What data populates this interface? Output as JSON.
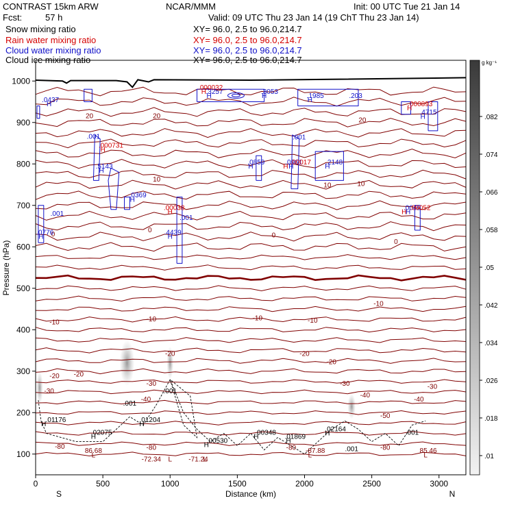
{
  "header": {
    "title": "CONTRAST 15km ARW",
    "org": "NCAR/MMM",
    "init": "Init: 00 UTC Tue 21 Jan 14",
    "fcst_label": "Fcst:",
    "fcst_value": "57 h",
    "valid": "Valid: 09 UTC Thu 23 Jan 14 (19 ChT Thu 23 Jan 14)"
  },
  "legend": [
    {
      "name": "Snow mixing ratio",
      "xy": "XY=  96.0,  2.5 to  96.0,214.7",
      "color": "#000000"
    },
    {
      "name": "Rain water mixing ratio",
      "xy": "XY=  96.0,  2.5 to  96.0,214.7",
      "color": "#d40000"
    },
    {
      "name": "Cloud water mixing ratio",
      "xy": "XY=  96.0,  2.5 to  96.0,214.7",
      "color": "#1010c8"
    },
    {
      "name": "Cloud ice mixing ratio",
      "xy": "XY=  96.0,  2.5 to  96.0,214.7",
      "color": "#000000"
    }
  ],
  "colors": {
    "temp": "#800000",
    "rain": "#d40000",
    "cloud": "#1010c8",
    "snow": "#000000",
    "terrain": "#000000"
  },
  "chart_data": {
    "type": "cross-section",
    "xlabel": "Distance (km)",
    "ylabel": "Pressure (hPa)",
    "xlim": [
      0,
      3200
    ],
    "ylim": [
      1050,
      50
    ],
    "x_ticks": [
      0,
      500,
      1000,
      1500,
      2000,
      2500,
      3000
    ],
    "y_ticks": [
      100,
      200,
      300,
      400,
      500,
      600,
      700,
      800,
      900,
      1000
    ],
    "left_end_label": "S",
    "right_end_label": "N",
    "colorbar": {
      "unit": "g kg⁻¹",
      "ticks": [
        ".082",
        ".074",
        ".066",
        ".058",
        ".05",
        ".042",
        ".034",
        ".026",
        ".018",
        ".01"
      ]
    },
    "temperature_isotherms": [
      {
        "label": "-80",
        "p": 125
      },
      {
        "label": "-50",
        "p": 185
      },
      {
        "label": "-40",
        "p": 210
      },
      {
        "label": "-30",
        "p": 240
      },
      {
        "label": "-20",
        "p": 270
      },
      {
        "label": "-10",
        "p": 315
      },
      {
        "label": "0",
        "p": 520
      },
      {
        "label": "10",
        "p": 720
      },
      {
        "label": "20",
        "p": 900
      }
    ],
    "labels": [
      {
        "t": "L",
        "x": 430,
        "p": 97,
        "c": "temp"
      },
      {
        "t": "86.68",
        "x": 430,
        "p": 108,
        "c": "temp"
      },
      {
        "t": "L",
        "x": 1000,
        "p": 87,
        "c": "temp"
      },
      {
        "t": "-72.34",
        "x": 860,
        "p": 87,
        "c": "temp"
      },
      {
        "t": "L",
        "x": 1260,
        "p": 87,
        "c": "temp"
      },
      {
        "t": "-71.24",
        "x": 1210,
        "p": 87,
        "c": "temp"
      },
      {
        "t": "L",
        "x": 2040,
        "p": 97,
        "c": "temp"
      },
      {
        "t": "-87.88",
        "x": 2080,
        "p": 108,
        "c": "temp"
      },
      {
        "t": "L",
        "x": 2900,
        "p": 97,
        "c": "temp"
      },
      {
        "t": "85.46",
        "x": 2920,
        "p": 108,
        "c": "temp"
      },
      {
        "t": "-80",
        "x": 180,
        "p": 118,
        "c": "temp"
      },
      {
        "t": "-80",
        "x": 860,
        "p": 115,
        "c": "temp"
      },
      {
        "t": "-80",
        "x": 1900,
        "p": 115,
        "c": "temp"
      },
      {
        "t": "-80",
        "x": 2600,
        "p": 115,
        "c": "temp"
      },
      {
        "t": "-40",
        "x": 820,
        "p": 232,
        "c": "temp"
      },
      {
        "t": "-40",
        "x": 2850,
        "p": 232,
        "c": "temp"
      },
      {
        "t": "-40",
        "x": 2450,
        "p": 242,
        "c": "temp"
      },
      {
        "t": "-50",
        "x": 2600,
        "p": 192,
        "c": "temp"
      },
      {
        "t": "-30",
        "x": 100,
        "p": 252,
        "c": "temp"
      },
      {
        "t": "-30",
        "x": 860,
        "p": 270,
        "c": "temp"
      },
      {
        "t": "-30",
        "x": 2300,
        "p": 270,
        "c": "temp"
      },
      {
        "t": "-30",
        "x": 2950,
        "p": 262,
        "c": "temp"
      },
      {
        "t": "-20",
        "x": 140,
        "p": 288,
        "c": "temp"
      },
      {
        "t": "-20",
        "x": 320,
        "p": 292,
        "c": "temp"
      },
      {
        "t": "-20",
        "x": 1000,
        "p": 342,
        "c": "temp"
      },
      {
        "t": "-20",
        "x": 2000,
        "p": 342,
        "c": "temp"
      },
      {
        "t": "-20",
        "x": 2200,
        "p": 322,
        "c": "temp"
      },
      {
        "t": "-10",
        "x": 140,
        "p": 418,
        "c": "temp"
      },
      {
        "t": "-10",
        "x": 860,
        "p": 425,
        "c": "temp"
      },
      {
        "t": "-10",
        "x": 1650,
        "p": 428,
        "c": "temp"
      },
      {
        "t": "-10",
        "x": 2060,
        "p": 422,
        "c": "temp"
      },
      {
        "t": "-10",
        "x": 2550,
        "p": 462,
        "c": "temp"
      },
      {
        "t": "0",
        "x": 130,
        "p": 630,
        "c": "temp"
      },
      {
        "t": "0",
        "x": 850,
        "p": 640,
        "c": "temp"
      },
      {
        "t": "0",
        "x": 1770,
        "p": 628,
        "c": "temp"
      },
      {
        "t": "0",
        "x": 2680,
        "p": 612,
        "c": "temp"
      },
      {
        "t": "10",
        "x": 900,
        "p": 762,
        "c": "temp"
      },
      {
        "t": "10",
        "x": 2170,
        "p": 748,
        "c": "temp"
      },
      {
        "t": "10",
        "x": 2420,
        "p": 752,
        "c": "temp"
      },
      {
        "t": "20",
        "x": 400,
        "p": 915,
        "c": "temp"
      },
      {
        "t": "20",
        "x": 900,
        "p": 915,
        "c": "temp"
      },
      {
        "t": "20",
        "x": 2430,
        "p": 905,
        "c": "temp"
      },
      {
        "t": "H",
        "x": 430,
        "p": 142,
        "c": "snow"
      },
      {
        "t": ".02075",
        "x": 490,
        "p": 152,
        "c": "snow"
      },
      {
        "t": "H",
        "x": 60,
        "p": 172,
        "c": "snow"
      },
      {
        "t": ".01176",
        "x": 150,
        "p": 182,
        "c": "snow"
      },
      {
        "t": "H",
        "x": 790,
        "p": 172,
        "c": "snow"
      },
      {
        "t": ".01204",
        "x": 850,
        "p": 182,
        "c": "snow"
      },
      {
        "t": "H",
        "x": 1270,
        "p": 122,
        "c": "snow"
      },
      {
        "t": ".00530",
        "x": 1350,
        "p": 132,
        "c": "snow"
      },
      {
        "t": "H",
        "x": 1640,
        "p": 142,
        "c": "snow"
      },
      {
        "t": ".00348",
        "x": 1710,
        "p": 152,
        "c": "snow"
      },
      {
        "t": "H",
        "x": 1880,
        "p": 132,
        "c": "snow"
      },
      {
        "t": ".01869",
        "x": 1930,
        "p": 142,
        "c": "snow"
      },
      {
        "t": "H",
        "x": 2170,
        "p": 150,
        "c": "snow"
      },
      {
        "t": ".02164",
        "x": 2230,
        "p": 160,
        "c": "snow"
      },
      {
        "t": ".001",
        "x": 700,
        "p": 222,
        "c": "snow"
      },
      {
        "t": ".001",
        "x": 1000,
        "p": 252,
        "c": "snow"
      },
      {
        "t": ".001",
        "x": 2350,
        "p": 112,
        "c": "snow"
      },
      {
        "t": ".001",
        "x": 2800,
        "p": 152,
        "c": "snow"
      },
      {
        "t": "H",
        "x": 40,
        "p": 624,
        "c": "cloud"
      },
      {
        "t": ".0776",
        "x": 70,
        "p": 634,
        "c": "cloud"
      },
      {
        "t": ".001",
        "x": 160,
        "p": 680,
        "c": "cloud"
      },
      {
        "t": "H",
        "x": 1000,
        "p": 624,
        "c": "cloud"
      },
      {
        "t": ".4439",
        "x": 1020,
        "p": 634,
        "c": "cloud"
      },
      {
        "t": ".001",
        "x": 1120,
        "p": 670,
        "c": "cloud"
      },
      {
        "t": "H",
        "x": 720,
        "p": 714,
        "c": "cloud"
      },
      {
        "t": ".0369",
        "x": 760,
        "p": 724,
        "c": "cloud"
      },
      {
        "t": "H",
        "x": 490,
        "p": 784,
        "c": "cloud"
      },
      {
        "t": ".5143",
        "x": 510,
        "p": 794,
        "c": "cloud"
      },
      {
        "t": ".001",
        "x": 430,
        "p": 866,
        "c": "cloud"
      },
      {
        "t": "H",
        "x": 1600,
        "p": 794,
        "c": "cloud"
      },
      {
        "t": ".0859",
        "x": 1640,
        "p": 804,
        "c": "cloud"
      },
      {
        "t": "H",
        "x": 2170,
        "p": 794,
        "c": "cloud"
      },
      {
        "t": ".2148",
        "x": 2220,
        "p": 804,
        "c": "cloud"
      },
      {
        "t": ".001",
        "x": 1960,
        "p": 864,
        "c": "cloud"
      },
      {
        "t": "H",
        "x": 1900,
        "p": 794,
        "c": "cloud"
      },
      {
        "t": ".0961",
        "x": 1920,
        "p": 804,
        "c": "cloud"
      },
      {
        "t": "H",
        "x": 2880,
        "p": 914,
        "c": "cloud"
      },
      {
        "t": ".4715",
        "x": 2920,
        "p": 924,
        "c": "cloud"
      },
      {
        "t": "H",
        "x": 100,
        "p": 944,
        "c": "cloud"
      },
      {
        "t": ".0437",
        "x": 110,
        "p": 954,
        "c": "cloud"
      },
      {
        "t": "H",
        "x": 1290,
        "p": 964,
        "c": "cloud"
      },
      {
        "t": ".3257",
        "x": 1330,
        "p": 974,
        "c": "cloud"
      },
      {
        "t": "H",
        "x": 1700,
        "p": 964,
        "c": "cloud"
      },
      {
        "t": ".3053",
        "x": 1740,
        "p": 974,
        "c": "cloud"
      },
      {
        "t": "H",
        "x": 2040,
        "p": 954,
        "c": "cloud"
      },
      {
        "t": ".1985",
        "x": 2080,
        "p": 964,
        "c": "cloud"
      },
      {
        "t": ".203",
        "x": 2380,
        "p": 964,
        "c": "cloud"
      },
      {
        "t": "H",
        "x": 2770,
        "p": 684,
        "c": "cloud"
      },
      {
        "t": ".0045",
        "x": 2800,
        "p": 694,
        "c": "cloud"
      },
      {
        "t": "H",
        "x": 1000,
        "p": 684,
        "c": "rain"
      },
      {
        "t": ".00038",
        "x": 1030,
        "p": 694,
        "c": "rain"
      },
      {
        "t": "H",
        "x": 500,
        "p": 834,
        "c": "rain"
      },
      {
        "t": ".000731",
        "x": 560,
        "p": 844,
        "c": "rain"
      },
      {
        "t": "H",
        "x": 1860,
        "p": 794,
        "c": "rain"
      },
      {
        "t": ".00017",
        "x": 1970,
        "p": 804,
        "c": "rain"
      },
      {
        "t": "H",
        "x": 2740,
        "p": 684,
        "c": "rain"
      },
      {
        "t": ".00052",
        "x": 2860,
        "p": 694,
        "c": "rain"
      },
      {
        "t": "H",
        "x": 1250,
        "p": 974,
        "c": "rain"
      },
      {
        "t": ".000032",
        "x": 1300,
        "p": 984,
        "c": "rain"
      },
      {
        "t": "H",
        "x": 2780,
        "p": 934,
        "c": "rain"
      },
      {
        "t": ".000893",
        "x": 2860,
        "p": 944,
        "c": "rain"
      }
    ]
  }
}
